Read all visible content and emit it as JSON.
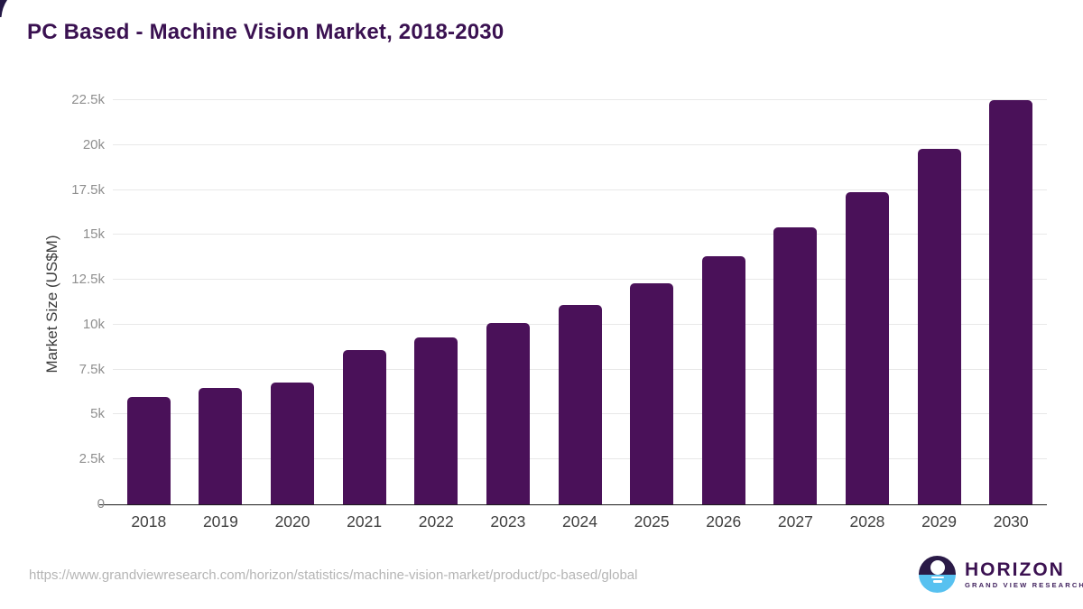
{
  "page": {
    "title": "PC Based - Machine Vision Market, 2018-2030"
  },
  "chart_data": {
    "type": "bar",
    "title": "PC Based - Machine Vision Market, 2018-2030",
    "xlabel": "",
    "ylabel": "Market Size (US$M)",
    "categories": [
      "2018",
      "2019",
      "2020",
      "2021",
      "2022",
      "2023",
      "2024",
      "2025",
      "2026",
      "2027",
      "2028",
      "2029",
      "2030"
    ],
    "values": [
      6000,
      6500,
      6800,
      8600,
      9300,
      10100,
      11100,
      12300,
      13800,
      15400,
      17400,
      19800,
      22500
    ],
    "ylim": [
      0,
      22500
    ],
    "ytick_labels": [
      "0",
      "2.5k",
      "5k",
      "7.5k",
      "10k",
      "12.5k",
      "15k",
      "17.5k",
      "20k",
      "22.5k"
    ],
    "ytick_values": [
      0,
      2500,
      5000,
      7500,
      10000,
      12500,
      15000,
      17500,
      20000,
      22500
    ],
    "grid": true,
    "legend": "none",
    "bar_color": "#4a1159"
  },
  "footer": {
    "source_url": "https://www.grandviewresearch.com/horizon/statistics/machine-vision-market/product/pc-based/global",
    "logo": {
      "name": "HORIZON",
      "subtitle": "GRAND VIEW RESEARCH"
    }
  },
  "colors": {
    "bar": "#4a1159",
    "title_text": "#3a1151",
    "gridline": "#e8e8e8",
    "axis_line": "#1b1b1b",
    "ytick_text": "#8f8f8f",
    "xtick_text": "#3f3f3f",
    "url_text": "#b5b5b5",
    "logo_dark": "#2a1a47",
    "logo_blue": "#57c1f0"
  }
}
